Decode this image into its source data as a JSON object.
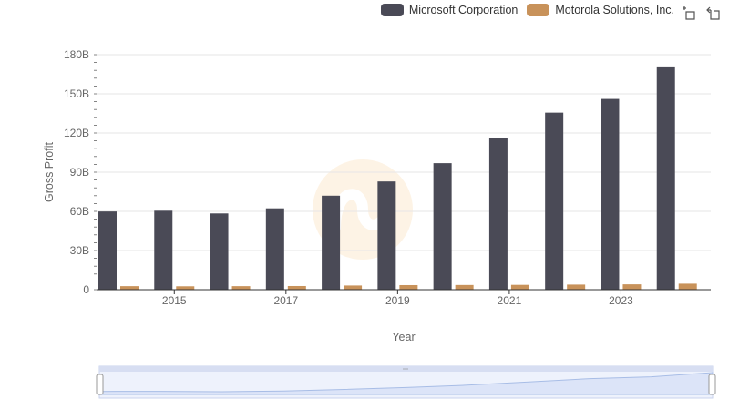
{
  "legend": {
    "items": [
      {
        "label": "Microsoft Corporation",
        "color": "#4a4a56"
      },
      {
        "label": "Motorola Solutions, Inc.",
        "color": "#c8925a"
      }
    ]
  },
  "toolbar": {
    "icons": [
      "zoom-select-icon",
      "zoom-reset-icon"
    ]
  },
  "chart_data": {
    "type": "bar",
    "title": "",
    "xlabel": "Year",
    "ylabel": "Gross Profit",
    "categories": [
      "2014",
      "2015",
      "2016",
      "2017",
      "2018",
      "2019",
      "2020",
      "2021",
      "2022",
      "2023",
      "2024"
    ],
    "x_tick_labels": [
      "2015",
      "2017",
      "2019",
      "2021",
      "2023"
    ],
    "y_ticks": [
      {
        "value": 0,
        "label": "0"
      },
      {
        "value": 30,
        "label": "30B"
      },
      {
        "value": 60,
        "label": "60B"
      },
      {
        "value": 90,
        "label": "90B"
      },
      {
        "value": 120,
        "label": "120B"
      },
      {
        "value": 150,
        "label": "150B"
      },
      {
        "value": 180,
        "label": "180B"
      }
    ],
    "ylim": [
      0,
      180
    ],
    "unit": "B",
    "series": [
      {
        "name": "Microsoft Corporation",
        "color": "#4a4a56",
        "values": [
          59.9,
          60.5,
          58.4,
          62.3,
          72.0,
          82.9,
          96.9,
          115.9,
          135.6,
          146.1,
          171.0
        ]
      },
      {
        "name": "Motorola Solutions, Inc.",
        "color": "#c8925a",
        "values": [
          2.7,
          2.6,
          2.7,
          2.8,
          3.2,
          3.5,
          3.6,
          3.7,
          3.9,
          4.1,
          4.6
        ]
      }
    ],
    "grid": true,
    "legend_position": "top-right"
  },
  "navigator": {
    "fill_color": "#dce4f8",
    "line_color": "#a8bde6"
  }
}
